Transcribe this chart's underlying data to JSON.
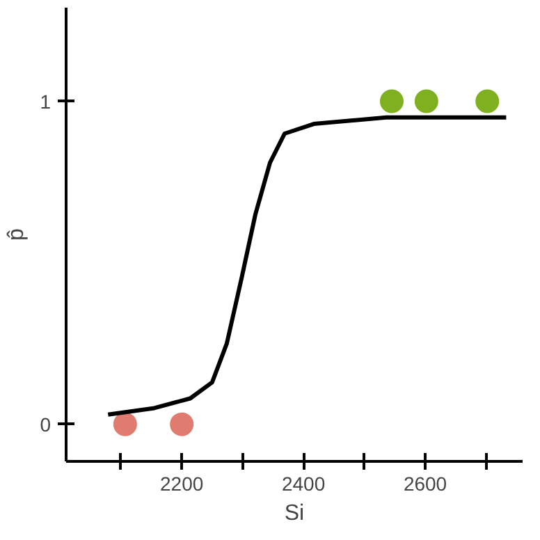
{
  "chart_data": {
    "type": "scatter",
    "xlabel": "Si",
    "ylabel": "p̂",
    "grid": false,
    "xlim": [
      2010,
      2760
    ],
    "ylim": [
      -0.115,
      1.29
    ],
    "xticks": [
      {
        "value": 2100,
        "label": null
      },
      2200,
      {
        "value": 2300,
        "label": null
      },
      2400,
      {
        "value": 2500,
        "label": null
      },
      2600,
      {
        "value": 2700,
        "label": null
      }
    ],
    "yticks": [
      0,
      1
    ],
    "series": [
      {
        "color": "#e07b6f",
        "marker": "circle",
        "x": [
          2107,
          2200
        ],
        "values": [
          0,
          0
        ]
      },
      {
        "color": "#7fb020",
        "marker": "circle",
        "x": [
          2545,
          2602,
          2702
        ],
        "values": [
          1,
          1,
          1
        ]
      },
      {
        "type": "line",
        "color": "#000000",
        "line_style": "solid",
        "x": [
          2079,
          2155,
          2214,
          2250,
          2274,
          2298,
          2321,
          2345,
          2369,
          2417,
          2536,
          2655,
          2733
        ],
        "values": [
          0.03,
          0.05,
          0.08,
          0.13,
          0.25,
          0.45,
          0.65,
          0.81,
          0.9,
          0.93,
          0.95,
          0.95,
          0.95
        ]
      }
    ]
  }
}
